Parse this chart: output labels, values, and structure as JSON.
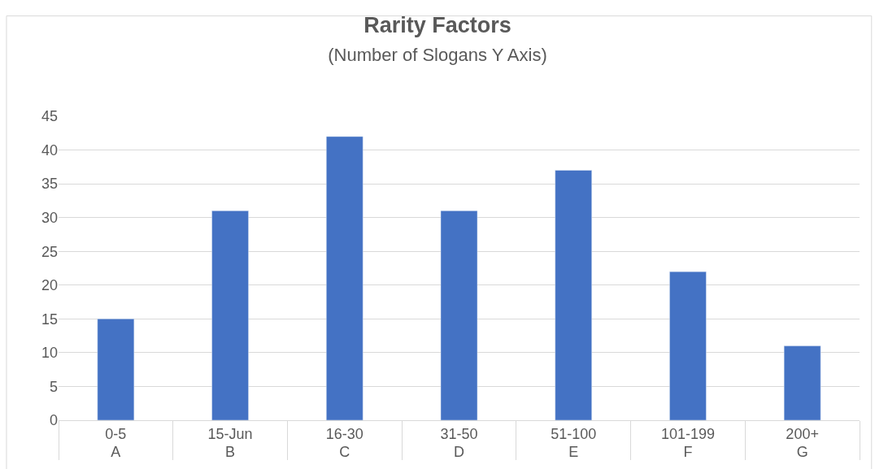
{
  "chart_data": {
    "type": "bar",
    "title": "Rarity Factors",
    "subtitle": "(Number of Slogans Y Axis)",
    "categories": [
      "0-5\nA",
      "15-Jun\nB",
      "16-30\nC",
      "31-50\nD",
      "51-100\nE",
      "101-199\nF",
      "200+\nG"
    ],
    "values": [
      15,
      31,
      42,
      31,
      37,
      22,
      11
    ],
    "color": "#4472c4",
    "ylim": [
      0,
      45
    ],
    "yticks": [
      0,
      5,
      10,
      15,
      20,
      25,
      30,
      35,
      40,
      45
    ],
    "grid": "y",
    "legend": false
  }
}
